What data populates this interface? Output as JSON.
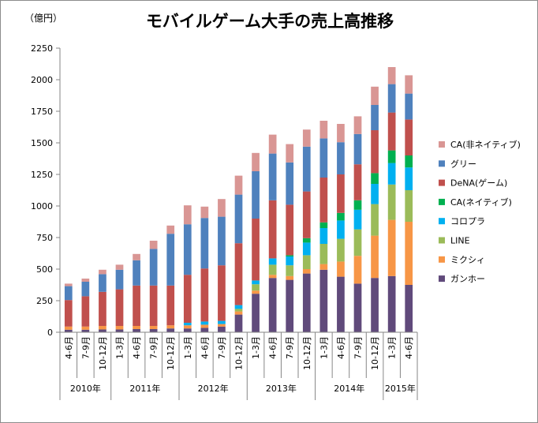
{
  "chart_data": {
    "type": "bar",
    "stacked": true,
    "title": "モバイルゲーム大手の売上高推移",
    "unit_label": "（億円）",
    "ylim": [
      0,
      2250
    ],
    "yticks": [
      0,
      250,
      500,
      750,
      1000,
      1250,
      1500,
      1750,
      2000,
      2250
    ],
    "grid": false,
    "legend_position": "right",
    "categories": [
      "4-6月",
      "7-9月",
      "10-12月",
      "1-3月",
      "4-6月",
      "7-9月",
      "10-12月",
      "1-3月",
      "4-6月",
      "7-9月",
      "10-12月",
      "1-3月",
      "4-6月",
      "7-9月",
      "10-12月",
      "1-3月",
      "4-6月",
      "7-9月",
      "10-12月",
      "1-3月",
      "4-6月"
    ],
    "year_groups": [
      {
        "label": "2010年",
        "start": 0,
        "count": 3
      },
      {
        "label": "2011年",
        "start": 3,
        "count": 4
      },
      {
        "label": "2012年",
        "start": 7,
        "count": 4
      },
      {
        "label": "2013年",
        "start": 11,
        "count": 4
      },
      {
        "label": "2014年",
        "start": 15,
        "count": 4
      },
      {
        "label": "2015年",
        "start": 19,
        "count": 2
      }
    ],
    "series": [
      {
        "name": "ガンホー",
        "color": "#604a7b",
        "values": [
          20,
          20,
          22,
          22,
          25,
          25,
          30,
          30,
          35,
          45,
          140,
          305,
          430,
          415,
          465,
          495,
          440,
          385,
          430,
          445,
          375
        ]
      },
      {
        "name": "ミクシィ",
        "color": "#f79646",
        "values": [
          25,
          25,
          28,
          28,
          25,
          25,
          25,
          25,
          25,
          20,
          25,
          25,
          25,
          30,
          35,
          45,
          120,
          220,
          335,
          445,
          500
        ]
      },
      {
        "name": "LINE",
        "color": "#9bbb59",
        "values": [
          0,
          0,
          0,
          0,
          0,
          0,
          0,
          0,
          0,
          0,
          20,
          50,
          80,
          85,
          110,
          160,
          180,
          210,
          250,
          280,
          250
        ]
      },
      {
        "name": "コロプラ",
        "color": "#00b0f0",
        "values": [
          0,
          0,
          0,
          0,
          0,
          0,
          0,
          20,
          25,
          25,
          30,
          30,
          50,
          70,
          100,
          125,
          145,
          155,
          160,
          170,
          180
        ]
      },
      {
        "name": "CA(ネイティブ)",
        "color": "#00b050",
        "values": [
          0,
          0,
          0,
          0,
          0,
          0,
          0,
          0,
          0,
          0,
          0,
          0,
          0,
          10,
          35,
          45,
          60,
          75,
          85,
          100,
          95
        ]
      },
      {
        "name": "DeNA(ゲーム)",
        "color": "#c0504d",
        "values": [
          210,
          240,
          270,
          290,
          320,
          320,
          315,
          380,
          420,
          440,
          490,
          490,
          460,
          400,
          370,
          355,
          305,
          285,
          340,
          300,
          285
        ]
      },
      {
        "name": "グリー",
        "color": "#4f81bd",
        "values": [
          110,
          115,
          140,
          155,
          200,
          290,
          410,
          400,
          400,
          385,
          385,
          375,
          370,
          335,
          355,
          310,
          255,
          240,
          200,
          225,
          205
        ]
      },
      {
        "name": "CA(非ネイティブ)",
        "color": "#d99694",
        "values": [
          20,
          25,
          35,
          40,
          50,
          65,
          65,
          150,
          90,
          140,
          150,
          145,
          150,
          145,
          135,
          140,
          145,
          140,
          145,
          135,
          145
        ]
      }
    ]
  }
}
